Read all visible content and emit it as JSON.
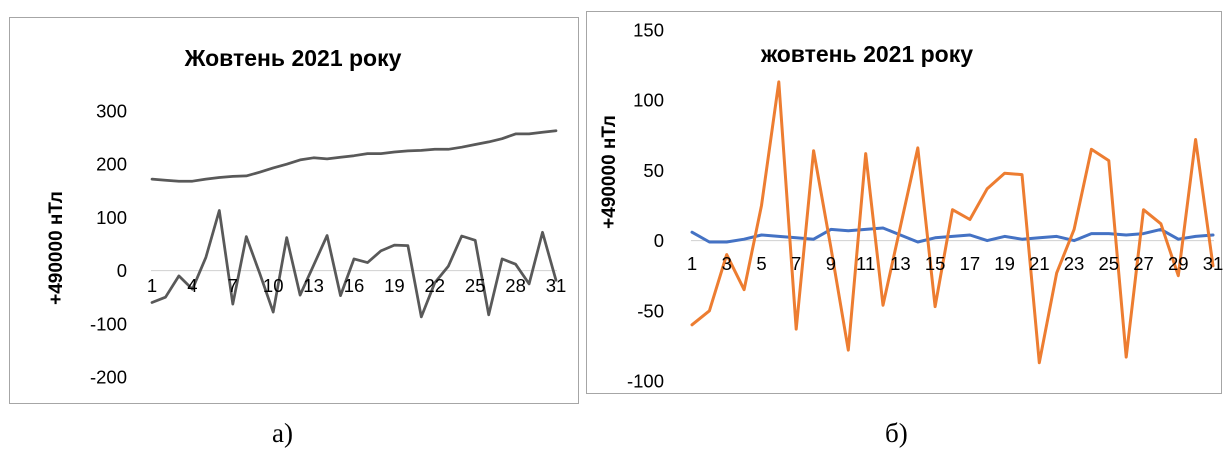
{
  "chart_data": [
    {
      "type": "line",
      "title": "Жовтень 2021 року",
      "ylabel": "+490000 нТл",
      "ylim": [
        -200,
        300
      ],
      "yticks": [
        "300",
        "200",
        "100",
        "0",
        "-100",
        "-200"
      ],
      "ytick_values": [
        300,
        200,
        100,
        0,
        -100,
        -200
      ],
      "x": [
        1,
        2,
        3,
        4,
        5,
        6,
        7,
        8,
        9,
        10,
        11,
        12,
        13,
        14,
        15,
        16,
        17,
        18,
        19,
        20,
        21,
        22,
        23,
        24,
        25,
        26,
        27,
        28,
        29,
        30,
        31
      ],
      "xtick_labels": [
        "1",
        "4",
        "7",
        "10",
        "13",
        "16",
        "19",
        "22",
        "25",
        "28",
        "31"
      ],
      "xtick_values": [
        1,
        4,
        7,
        10,
        13,
        16,
        19,
        22,
        25,
        28,
        31
      ],
      "colors": [
        "#595959",
        "#595959"
      ],
      "series": [
        {
          "values": [
            172,
            170,
            168,
            168,
            172,
            175,
            177,
            178,
            185,
            193,
            200,
            208,
            212,
            210,
            213,
            216,
            220,
            220,
            223,
            225,
            226,
            228,
            228,
            232,
            237,
            242,
            248,
            257,
            257,
            260,
            263
          ]
        },
        {
          "values": [
            -60,
            -50,
            -10,
            -35,
            25,
            113,
            -63,
            64,
            -5,
            -78,
            62,
            -46,
            10,
            66,
            -47,
            22,
            15,
            37,
            48,
            47,
            -87,
            -23,
            8,
            65,
            57,
            -83,
            22,
            12,
            -25,
            72,
            -18
          ]
        }
      ]
    },
    {
      "type": "line",
      "title": "жовтень 2021 року",
      "ylabel": "+490000 нТл",
      "ylim": [
        -100,
        150
      ],
      "yticks": [
        "150",
        "100",
        "50",
        "0",
        "-50",
        "-100"
      ],
      "ytick_values": [
        150,
        100,
        50,
        0,
        -50,
        -100
      ],
      "x": [
        1,
        2,
        3,
        4,
        5,
        6,
        7,
        8,
        9,
        10,
        11,
        12,
        13,
        14,
        15,
        16,
        17,
        18,
        19,
        20,
        21,
        22,
        23,
        24,
        25,
        26,
        27,
        28,
        29,
        30,
        31
      ],
      "xtick_labels": [
        "1",
        "3",
        "5",
        "7",
        "9",
        "11",
        "13",
        "15",
        "17",
        "19",
        "21",
        "23",
        "25",
        "27",
        "29",
        "31"
      ],
      "xtick_values": [
        1,
        3,
        5,
        7,
        9,
        11,
        13,
        15,
        17,
        19,
        21,
        23,
        25,
        27,
        29,
        31
      ],
      "colors": [
        "#4472c4",
        "#ed7d31"
      ],
      "series": [
        {
          "values": [
            6,
            -1,
            -1,
            1,
            4,
            3,
            2,
            1,
            8,
            7,
            8,
            9,
            4,
            -1,
            2,
            3,
            4,
            0,
            3,
            1,
            2,
            3,
            0,
            5,
            5,
            4,
            5,
            8,
            1,
            3,
            4
          ]
        },
        {
          "values": [
            -60,
            -50,
            -10,
            -35,
            25,
            113,
            -63,
            64,
            -5,
            -78,
            62,
            -46,
            10,
            66,
            -47,
            22,
            15,
            37,
            48,
            47,
            -87,
            -23,
            8,
            65,
            57,
            -83,
            22,
            12,
            -25,
            72,
            -18
          ]
        }
      ]
    }
  ],
  "labels": {
    "panel_a": "а)",
    "panel_b": "б)"
  }
}
